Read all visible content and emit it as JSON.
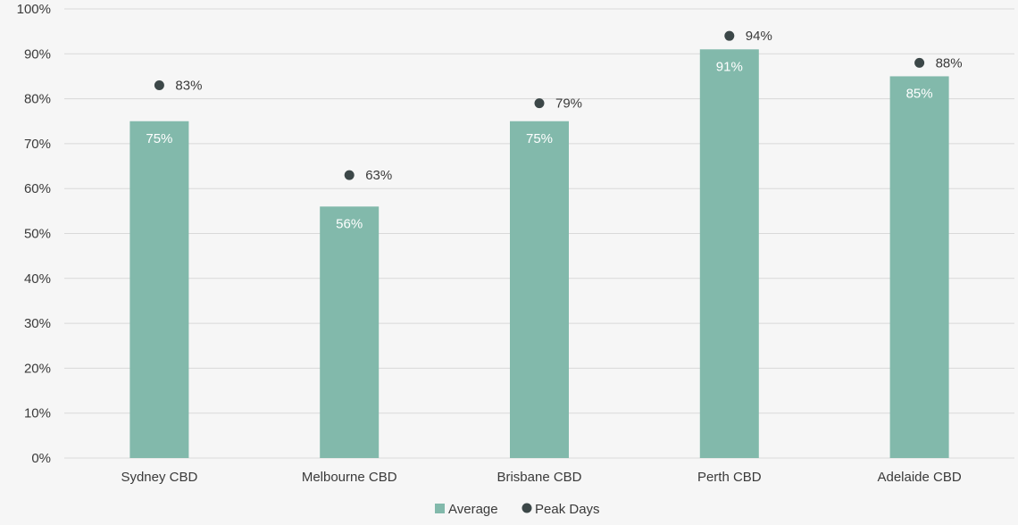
{
  "chart_data": {
    "type": "bar",
    "title": "",
    "xlabel": "",
    "ylabel": "",
    "ylim": [
      0,
      100
    ],
    "yticks": [
      "0%",
      "10%",
      "20%",
      "30%",
      "40%",
      "50%",
      "60%",
      "70%",
      "80%",
      "90%",
      "100%"
    ],
    "categories": [
      "Sydney CBD",
      "Melbourne CBD",
      "Brisbane CBD",
      "Perth CBD",
      "Adelaide CBD"
    ],
    "series": [
      {
        "name": "Average",
        "type": "bar",
        "color": "#82b9ab",
        "values": [
          75,
          56,
          75,
          91,
          85
        ],
        "labels": [
          "75%",
          "56%",
          "75%",
          "91%",
          "85%"
        ]
      },
      {
        "name": "Peak Days",
        "type": "scatter",
        "color": "#3c4748",
        "values": [
          83,
          63,
          79,
          94,
          88
        ],
        "labels": [
          "83%",
          "63%",
          "79%",
          "94%",
          "88%"
        ]
      }
    ],
    "grid": true,
    "legend": "bottom-center"
  }
}
